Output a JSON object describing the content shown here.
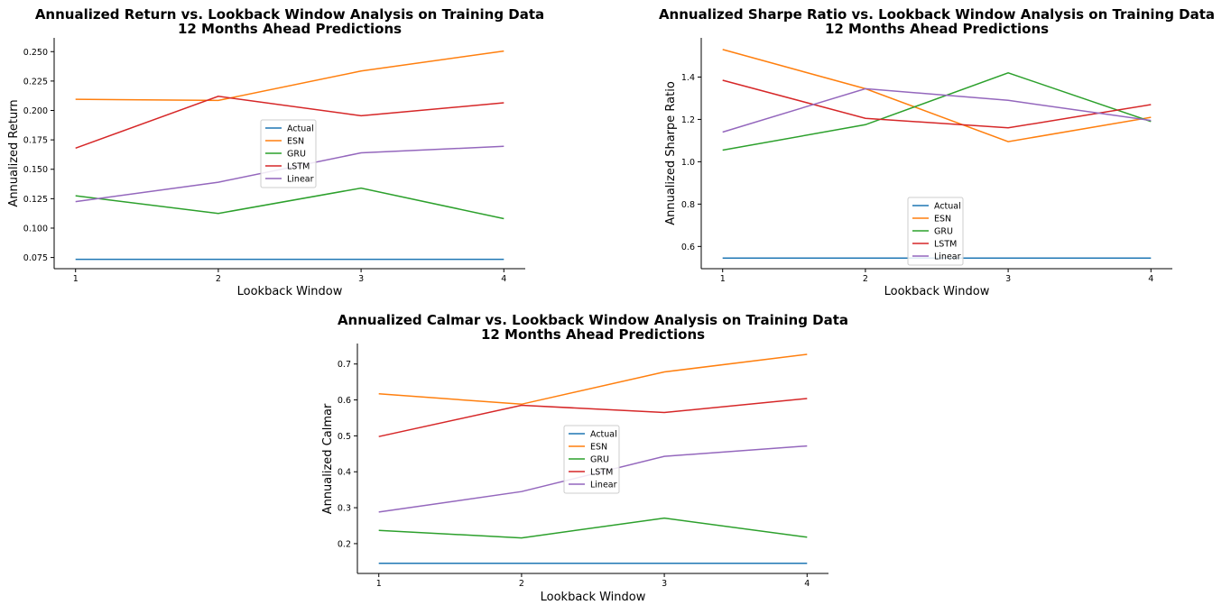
{
  "colors": {
    "Actual": "#1f77b4",
    "ESN": "#ff7f0e",
    "GRU": "#2ca02c",
    "LSTM": "#d62728",
    "Linear": "#9467bd"
  },
  "chart_data": [
    {
      "type": "line",
      "title": [
        "Annualized Return vs. Lookback Window Analysis on Training Data",
        "12 Months Ahead Predictions"
      ],
      "xlabel": "Lookback Window",
      "ylabel": "Annualized Return",
      "x": [
        1,
        2,
        3,
        4
      ],
      "xticks": [
        "1",
        "2",
        "3",
        "4"
      ],
      "yticks": [
        "0.075",
        "0.100",
        "0.125",
        "0.150",
        "0.175",
        "0.200",
        "0.225",
        "0.250"
      ],
      "ylim": [
        0.0655,
        0.2617
      ],
      "xlim": [
        0.85,
        4.15
      ],
      "legend_position": "center",
      "series": [
        {
          "name": "Actual",
          "values": [
            0.0735,
            0.0735,
            0.0735,
            0.0735
          ]
        },
        {
          "name": "ESN",
          "values": [
            0.2095,
            0.2085,
            0.2335,
            0.2505
          ]
        },
        {
          "name": "GRU",
          "values": [
            0.1275,
            0.1125,
            0.134,
            0.108
          ]
        },
        {
          "name": "LSTM",
          "values": [
            0.168,
            0.212,
            0.1955,
            0.2065
          ]
        },
        {
          "name": "Linear",
          "values": [
            0.1225,
            0.139,
            0.164,
            0.1695
          ]
        }
      ]
    },
    {
      "type": "line",
      "title": [
        "Annualized Sharpe Ratio vs. Lookback Window Analysis on Training Data",
        "12 Months Ahead Predictions"
      ],
      "xlabel": "Lookback Window",
      "ylabel": "Annualized Sharpe Ratio",
      "x": [
        1,
        2,
        3,
        4
      ],
      "xticks": [
        "1",
        "2",
        "3",
        "4"
      ],
      "yticks": [
        "0.6",
        "0.8",
        "1.0",
        "1.2",
        "1.4"
      ],
      "ylim": [
        0.495,
        1.585
      ],
      "xlim": [
        0.85,
        4.15
      ],
      "legend_position": "lower center",
      "series": [
        {
          "name": "Actual",
          "values": [
            0.545,
            0.545,
            0.545,
            0.545
          ]
        },
        {
          "name": "ESN",
          "values": [
            1.53,
            1.345,
            1.095,
            1.21
          ]
        },
        {
          "name": "GRU",
          "values": [
            1.055,
            1.175,
            1.42,
            1.19
          ]
        },
        {
          "name": "LSTM",
          "values": [
            1.385,
            1.205,
            1.16,
            1.27
          ]
        },
        {
          "name": "Linear",
          "values": [
            1.14,
            1.345,
            1.29,
            1.195
          ]
        }
      ]
    },
    {
      "type": "line",
      "title": [
        "Annualized Calmar vs. Lookback Window Analysis on Training Data",
        "12 Months Ahead Predictions"
      ],
      "xlabel": "Lookback Window",
      "ylabel": "Annualized Calmar",
      "x": [
        1,
        2,
        3,
        4
      ],
      "xticks": [
        "1",
        "2",
        "3",
        "4"
      ],
      "yticks": [
        "0.2",
        "0.3",
        "0.4",
        "0.5",
        "0.6",
        "0.7"
      ],
      "ylim": [
        0.117,
        0.757
      ],
      "xlim": [
        0.85,
        4.15
      ],
      "legend_position": "center",
      "series": [
        {
          "name": "Actual",
          "values": [
            0.145,
            0.145,
            0.145,
            0.145
          ]
        },
        {
          "name": "ESN",
          "values": [
            0.617,
            0.588,
            0.678,
            0.727
          ]
        },
        {
          "name": "GRU",
          "values": [
            0.237,
            0.216,
            0.271,
            0.218
          ]
        },
        {
          "name": "LSTM",
          "values": [
            0.498,
            0.585,
            0.565,
            0.604
          ]
        },
        {
          "name": "Linear",
          "values": [
            0.288,
            0.345,
            0.443,
            0.472
          ]
        }
      ]
    }
  ]
}
